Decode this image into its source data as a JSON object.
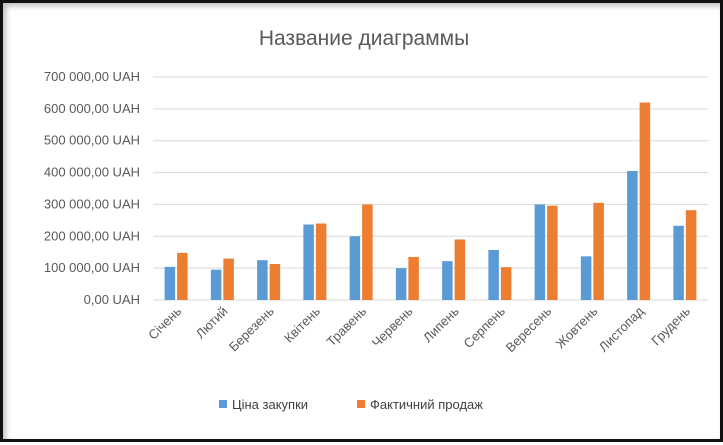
{
  "chart_data": {
    "type": "bar",
    "title": "Название  диаграммы",
    "categories": [
      "Січень",
      "Лютий",
      "Березень",
      "Квітень",
      "Травень",
      "Червень",
      "Липень",
      "Серпень",
      "Вересень",
      "Жовтень",
      "Листопад",
      "Грудень"
    ],
    "series": [
      {
        "name": "Ціна закупки",
        "color": "#5b9bd5",
        "values": [
          104000,
          95000,
          125000,
          237000,
          200000,
          100000,
          122000,
          157000,
          300000,
          137000,
          405000,
          233000
        ]
      },
      {
        "name": "Фактичний продаж",
        "color": "#ed7d31",
        "values": [
          148000,
          130000,
          113000,
          240000,
          300000,
          135000,
          190000,
          103000,
          296000,
          305000,
          620000,
          282000
        ]
      }
    ],
    "ylim": [
      0,
      700000
    ],
    "yticks": [
      0,
      100000,
      200000,
      300000,
      400000,
      500000,
      600000,
      700000
    ],
    "ytick_labels": [
      "0,00 UAH",
      "100 000,00 UAH",
      "200 000,00 UAH",
      "300 000,00 UAH",
      "400 000,00 UAH",
      "500 000,00 UAH",
      "600 000,00 UAH",
      "700 000,00 UAH"
    ],
    "xlabel": "",
    "ylabel": "",
    "grid": true,
    "legend_position": "bottom"
  }
}
